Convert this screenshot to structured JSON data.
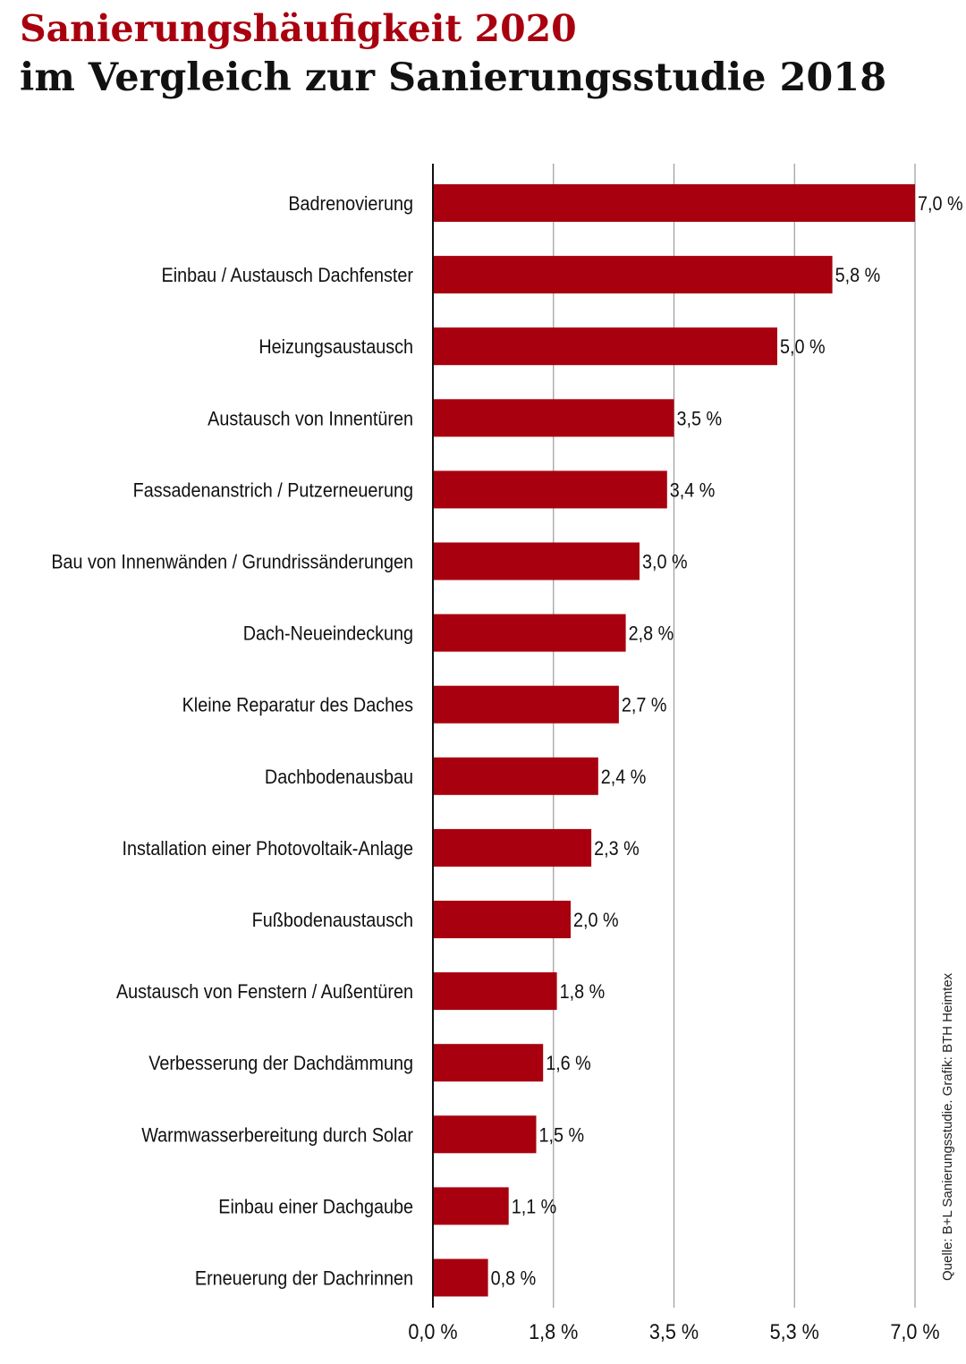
{
  "title": "Sanierungshäufigkeit 2020",
  "subtitle": "im Vergleich zur Sanierungsstudie 2018",
  "source": "Quelle: B+L Sanierungsstudie. Grafik: BTH Heimtex",
  "colors": {
    "bar": "#a8000e",
    "title": "#a8000e",
    "text": "#111111",
    "grid": "#9a9a9a"
  },
  "chart_data": {
    "type": "bar",
    "orientation": "horizontal",
    "title": "Sanierungshäufigkeit 2020",
    "subtitle": "im Vergleich zur Sanierungsstudie 2018",
    "categories": [
      "Badrenovierung",
      "Einbau / Austausch Dachfenster",
      "Heizungsaustausch",
      "Austausch von Innentüren",
      "Fassadenanstrich / Putzerneuerung",
      "Bau von Innenwänden / Grundrissänderungen",
      "Dach-Neueindeckung",
      "Kleine Reparatur des Daches",
      "Dachbodenausbau",
      "Installation einer Photovoltaik-Anlage",
      "Fußbodenaustausch",
      "Austausch von Fenstern / Außentüren",
      "Verbesserung der Dachdämmung",
      "Warmwasserbereitung durch Solar",
      "Einbau einer Dachgaube",
      "Erneuerung der Dachrinnen"
    ],
    "values": [
      7.0,
      5.8,
      5.0,
      3.5,
      3.4,
      3.0,
      2.8,
      2.7,
      2.4,
      2.3,
      2.0,
      1.8,
      1.6,
      1.5,
      1.1,
      0.8
    ],
    "value_labels": [
      "7,0 %",
      "5,8 %",
      "5,0 %",
      "3,5 %",
      "3,4 %",
      "3,0 %",
      "2,8 %",
      "2,7 %",
      "2,4 %",
      "2,3 %",
      "2,0 %",
      "1,8 %",
      "1,6 %",
      "1,5 %",
      "1,1 %",
      "0,8 %"
    ],
    "xticks": [
      0,
      1.75,
      3.5,
      5.25,
      7.0
    ],
    "xtick_labels": [
      "0,0 %",
      "1,8 %",
      "3,5 %",
      "5,3 %",
      "7,0 %"
    ],
    "xlim": [
      0,
      7.0
    ],
    "grid": true,
    "legend": false
  }
}
